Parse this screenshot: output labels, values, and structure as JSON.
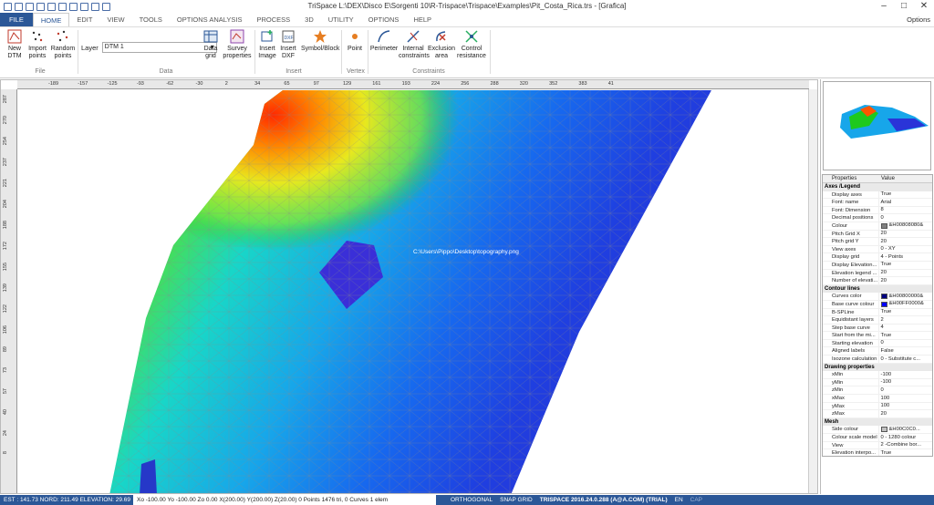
{
  "window": {
    "title": "TriSpace L:\\DEX\\Disco E\\Sorgenti 10\\R-Trispace\\Trispace\\Examples\\Pit_Costa_Rica.trs - [Grafica]",
    "min": "–",
    "max": "□",
    "close": "✕"
  },
  "menu": {
    "file": "FILE",
    "tabs": [
      "HOME",
      "EDIT",
      "VIEW",
      "TOOLS",
      "OPTIONS ANALYSIS",
      "PROCESS",
      "3D",
      "UTILITY",
      "OPTIONS",
      "HELP"
    ],
    "options_right": "Options"
  },
  "ribbon": {
    "file_buttons": [
      {
        "label1": "New",
        "label2": "DTM"
      },
      {
        "label1": "Import",
        "label2": "points"
      },
      {
        "label1": "Random",
        "label2": "points"
      }
    ],
    "file_group": "File",
    "layer_label": "Layer",
    "layer_value": "DTM 1",
    "data_buttons": [
      {
        "label1": "Data",
        "label2": "grid"
      },
      {
        "label1": "Survey",
        "label2": "properties"
      }
    ],
    "data_group": "Data",
    "insert_buttons": [
      {
        "label1": "Insert",
        "label2": "Image"
      },
      {
        "label1": "Insert",
        "label2": "DXF"
      },
      {
        "label1": "Symbol/Block",
        "label2": ""
      }
    ],
    "insert_group": "Insert",
    "vertex_buttons": [
      {
        "label1": "Point",
        "label2": ""
      }
    ],
    "vertex_group": "Vertex",
    "constraint_buttons": [
      {
        "label1": "Perimeter",
        "label2": ""
      },
      {
        "label1": "Internal",
        "label2": "constraints"
      },
      {
        "label1": "Exclusion",
        "label2": "area"
      },
      {
        "label1": "Control",
        "label2": "resistance"
      }
    ],
    "constraint_group": "Constraints"
  },
  "ruler": {
    "h": [
      "-189",
      "-157",
      "-125",
      "-93",
      "-62",
      "-30",
      "2",
      "34",
      "65",
      "97",
      "129",
      "161",
      "193",
      "224",
      "256",
      "288",
      "320",
      "352",
      "383",
      "41"
    ],
    "v": [
      "287",
      "270",
      "254",
      "237",
      "221",
      "204",
      "188",
      "172",
      "155",
      "139",
      "122",
      "106",
      "89",
      "73",
      "57",
      "40",
      "24",
      "8"
    ]
  },
  "watermark": "C:\\Users\\Pippo\\Desktop\\topography.png",
  "props": {
    "header": [
      "Properties",
      "Value"
    ],
    "sections": [
      {
        "title": "Axes /Legend",
        "rows": [
          [
            "Display axes",
            "True"
          ],
          [
            "Font: name",
            "Arial"
          ],
          [
            "Font: Dimension",
            "8"
          ],
          [
            "Decimal positions",
            "0"
          ],
          [
            "Colour",
            "&H00808080&"
          ],
          [
            "Pitch Grid X",
            "20"
          ],
          [
            "Pitch grid Y",
            "20"
          ],
          [
            "View axes",
            "0 - XY"
          ],
          [
            "Display grid",
            "4 - Points"
          ],
          [
            "Display Elevation...",
            "True"
          ],
          [
            "Elevation legend ...",
            "20"
          ],
          [
            "Number of elevati...",
            "20"
          ]
        ]
      },
      {
        "title": "Contour lines",
        "rows": [
          [
            "Curves color",
            "&H00800000&"
          ],
          [
            "Base curve colour",
            "&H00FF0000&"
          ],
          [
            "B-SPLine",
            "True"
          ],
          [
            "Equidistant layers",
            "2"
          ],
          [
            "Step base curve",
            "4"
          ],
          [
            "Start from the mi...",
            "True"
          ],
          [
            "Starting elevation",
            "0"
          ],
          [
            "Aligned labels",
            "False"
          ],
          [
            "Isozone calculation",
            "0 - Substitute c..."
          ]
        ]
      },
      {
        "title": "Drawing properties",
        "rows": [
          [
            "xMin",
            "-100"
          ],
          [
            "yMin",
            "-100"
          ],
          [
            "zMin",
            "0"
          ],
          [
            "xMax",
            "100"
          ],
          [
            "yMax",
            "100"
          ],
          [
            "zMax",
            "20"
          ]
        ]
      },
      {
        "title": "Mesh",
        "rows": [
          [
            "Side colour",
            "&H00C0C0..."
          ],
          [
            "Colour scale model",
            "0 - 1280 colour"
          ],
          [
            "View",
            "2 -Combine bor..."
          ],
          [
            "Elevation interpo...",
            "True"
          ]
        ]
      }
    ]
  },
  "colors": {
    "Colour": "#808080",
    "Curves color": "#000080",
    "Base curve colour": "#0000ff",
    "Side colour": "#c0c0c0"
  },
  "status": {
    "coords": "EST : 141.73   NORD: 211.49 ELEVATION: 29.69",
    "info": "Xo -100.00 Yo -100.00 Zo 0.00 X(200.00) Y(200.00) Z(20.00)  0 Points 1476 tri, 0 Curves 1 elem",
    "ortho": "ORTHOGONAL",
    "snap": "SNAP GRID",
    "product": "TRISPACE 2016.24.0.288 (A@A.COM) (TRIAL)",
    "lang": "EN",
    "cap": "CAP"
  }
}
